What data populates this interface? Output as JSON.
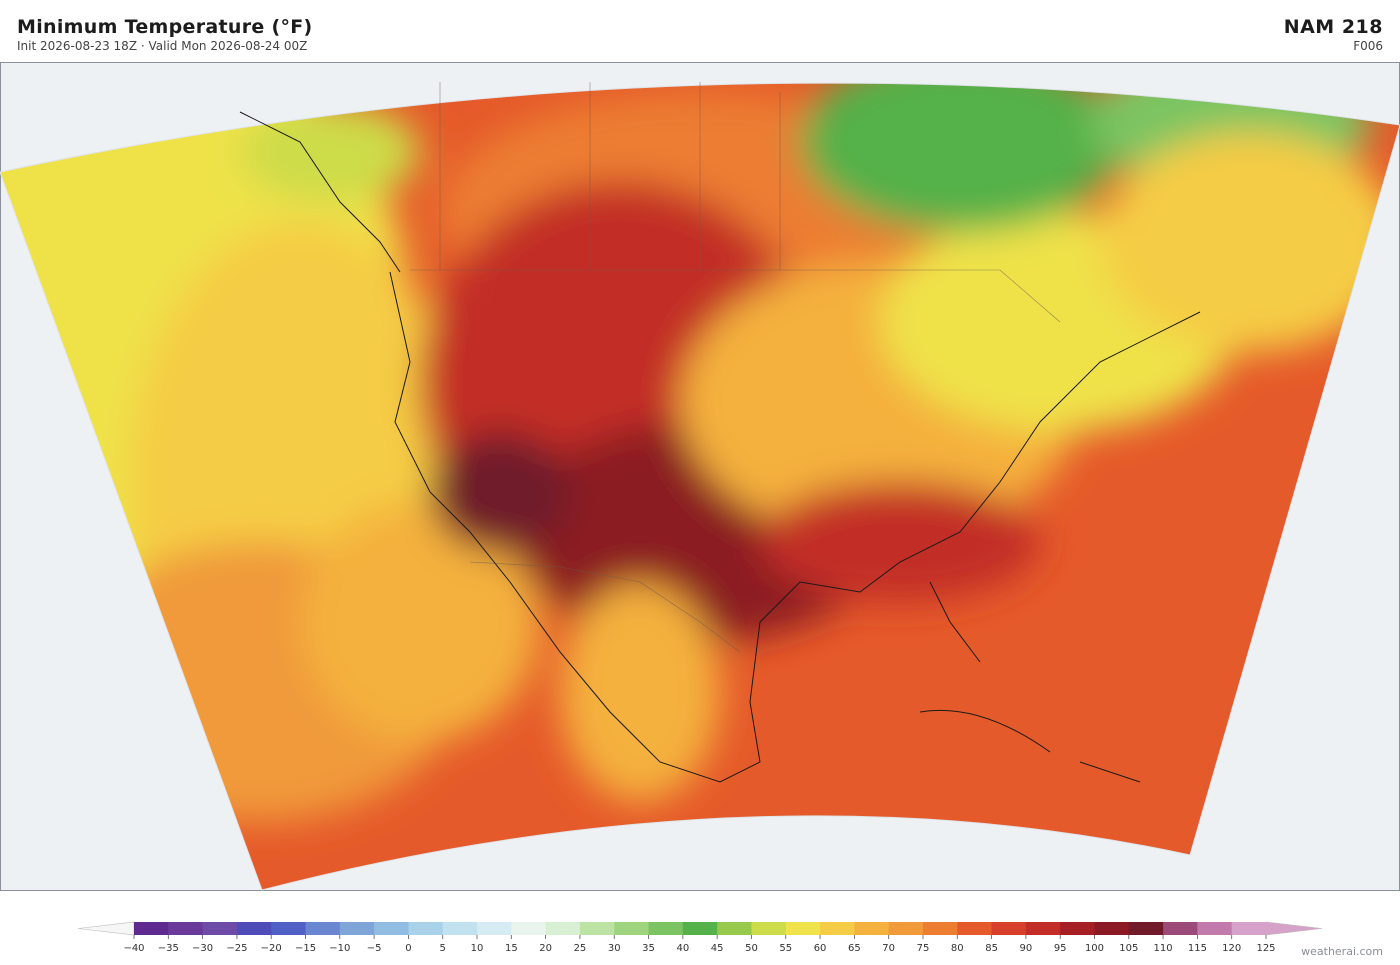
{
  "header": {
    "title": "Minimum Temperature  (°F)",
    "subtitle": "Init 2026-08-23 18Z  ·  Valid Mon 2026-08-24 00Z",
    "model": "NAM  218",
    "forecast_hour": "F006"
  },
  "colorbar": {
    "ticks": [
      {
        "value": -40,
        "label": "−40"
      },
      {
        "value": -35,
        "label": "−35"
      },
      {
        "value": -30,
        "label": "−30"
      },
      {
        "value": -25,
        "label": "−25"
      },
      {
        "value": -20,
        "label": "−20"
      },
      {
        "value": -15,
        "label": "−15"
      },
      {
        "value": -10,
        "label": "−10"
      },
      {
        "value": -5,
        "label": "−5"
      },
      0,
      5,
      10,
      15,
      20,
      25,
      30,
      35,
      40,
      45,
      50,
      55,
      60,
      65,
      70,
      75,
      80,
      85,
      90,
      95,
      100,
      105,
      110,
      115,
      120,
      125
    ],
    "colors": [
      "#5e2a8f",
      "#6a3a9a",
      "#6f4ba8",
      "#4f4bb9",
      "#5060c4",
      "#6a86d0",
      "#7ea4d8",
      "#92bde2",
      "#a9d1ea",
      "#c1e1ef",
      "#d6ecf2",
      "#e8f4ec",
      "#d9efd3",
      "#bde3a4",
      "#9fd47e",
      "#7cc462",
      "#55b14a",
      "#96c94c",
      "#cddc4a",
      "#efe24a",
      "#f5cc45",
      "#f4b13e",
      "#f09a3a",
      "#ec7d31",
      "#e55a2a",
      "#d7402a",
      "#c22e27",
      "#a51f25",
      "#8b1a24",
      "#701a2a",
      "#9c4a7a",
      "#c27aad",
      "#d7a2c9"
    ]
  },
  "footer": {
    "credit": "weatherai.com"
  }
}
